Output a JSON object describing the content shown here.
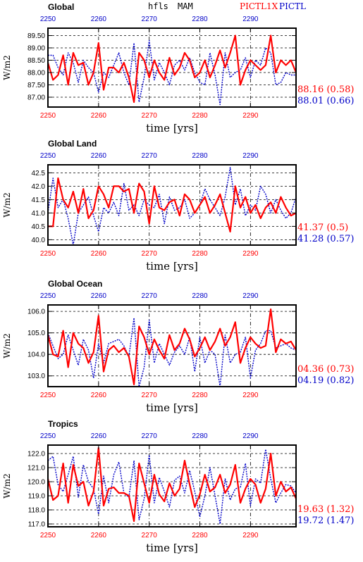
{
  "header": {
    "variable": "hfls",
    "season": "MAM",
    "series_a_label": "PICTL1X",
    "series_b_label": "PICTL"
  },
  "colors": {
    "series_a": "#ff0000",
    "series_b": "#0000c8",
    "axis": "#000000",
    "grid": "#000000"
  },
  "chart_data": [
    {
      "type": "line",
      "title": "Global",
      "xlabel": "time [yrs]",
      "ylabel": "W/m2",
      "xlim": [
        2250,
        2299
      ],
      "ylim": [
        86.6,
        89.8
      ],
      "xticks": [
        2250,
        2260,
        2270,
        2280,
        2290
      ],
      "yticks": [
        87.0,
        87.5,
        88.0,
        88.5,
        89.0,
        89.5
      ],
      "ytick_labels": [
        "87.00",
        "87.50",
        "88.00",
        "88.50",
        "89.00",
        "89.50"
      ],
      "grid": true,
      "series": [
        {
          "name": "PICTL1X",
          "stat": "88.16 (0.58)",
          "x_start": 2250,
          "values": [
            88.4,
            87.7,
            87.9,
            88.7,
            87.5,
            88.8,
            88.3,
            88.4,
            87.5,
            88.0,
            89.2,
            87.3,
            88.2,
            88.2,
            88.0,
            88.4,
            87.8,
            86.8,
            88.8,
            88.5,
            87.8,
            88.5,
            88.0,
            87.7,
            88.6,
            87.9,
            88.2,
            88.8,
            88.5,
            87.8,
            88.0,
            88.5,
            87.8,
            88.3,
            88.9,
            88.2,
            88.8,
            89.5,
            87.5,
            88.1,
            88.5,
            88.3,
            88.1,
            88.3,
            89.5,
            88.0,
            88.5,
            88.3,
            88.5,
            88.0
          ]
        },
        {
          "name": "PICTL",
          "stat": "88.01 (0.66)",
          "x_start": 2250,
          "values": [
            88.7,
            88.7,
            88.2,
            87.9,
            88.8,
            88.4,
            87.6,
            88.5,
            88.2,
            88.0,
            87.2,
            88.0,
            87.8,
            88.3,
            88.8,
            88.0,
            87.5,
            89.2,
            86.8,
            87.8,
            89.3,
            87.7,
            88.4,
            88.0,
            87.5,
            88.3,
            88.5,
            88.1,
            88.6,
            88.0,
            87.6,
            87.5,
            88.8,
            87.9,
            86.7,
            88.8,
            87.8,
            88.0,
            88.1,
            88.6,
            87.8,
            88.5,
            88.3,
            89.0,
            88.8,
            87.5,
            87.6,
            88.0,
            87.9,
            87.9
          ]
        }
      ]
    },
    {
      "type": "line",
      "title": "Global Land",
      "xlabel": "time [yrs]",
      "ylabel": "W/m2",
      "xlim": [
        2250,
        2299
      ],
      "ylim": [
        39.8,
        42.8
      ],
      "xticks": [
        2250,
        2260,
        2270,
        2280,
        2290
      ],
      "yticks": [
        40.0,
        40.5,
        41.0,
        41.5,
        42.0,
        42.5
      ],
      "ytick_labels": [
        "40.0",
        "40.5",
        "41.0",
        "41.5",
        "42.0",
        "42.5"
      ],
      "grid": true,
      "series": [
        {
          "name": "PICTL1X",
          "stat": "41.37 (0.5)",
          "x_start": 2250,
          "values": [
            40.5,
            40.5,
            42.3,
            41.5,
            41.2,
            41.8,
            41.0,
            41.9,
            40.8,
            41.1,
            42.0,
            41.7,
            41.2,
            42.0,
            42.0,
            41.8,
            41.9,
            41.0,
            42.1,
            41.8,
            40.6,
            42.0,
            41.2,
            41.1,
            41.4,
            41.5,
            40.9,
            41.7,
            41.5,
            41.0,
            41.3,
            41.6,
            41.0,
            41.3,
            41.7,
            41.0,
            40.3,
            42.0,
            41.2,
            41.6,
            41.0,
            41.3,
            40.8,
            41.2,
            41.4,
            41.0,
            41.6,
            41.2,
            40.9,
            41.0
          ]
        },
        {
          "name": "PICTL",
          "stat": "41.28 (0.57)",
          "x_start": 2250,
          "values": [
            41.0,
            42.3,
            41.2,
            41.5,
            40.8,
            39.8,
            41.0,
            41.3,
            41.6,
            40.9,
            40.3,
            41.2,
            41.0,
            41.4,
            40.9,
            42.1,
            41.1,
            41.3,
            40.9,
            41.5,
            41.3,
            41.2,
            41.7,
            40.6,
            41.6,
            41.1,
            41.2,
            41.5,
            40.8,
            41.0,
            41.3,
            41.9,
            41.5,
            41.2,
            40.9,
            41.6,
            42.7,
            41.3,
            41.9,
            40.9,
            41.3,
            41.1,
            42.0,
            41.7,
            41.0,
            41.5,
            41.1,
            40.8,
            41.0,
            41.6
          ]
        }
      ]
    },
    {
      "type": "line",
      "title": "Global Ocean",
      "xlabel": "time [yrs]",
      "ylabel": "W/m2",
      "xlim": [
        2250,
        2299
      ],
      "ylim": [
        102.5,
        106.3
      ],
      "xticks": [
        2250,
        2260,
        2270,
        2280,
        2290
      ],
      "yticks": [
        103.0,
        104.0,
        105.0,
        106.0
      ],
      "ytick_labels": [
        "103.0",
        "104.0",
        "105.0",
        "106.0"
      ],
      "grid": true,
      "series": [
        {
          "name": "PICTL1X",
          "stat": "04.36 (0.73)",
          "x_start": 2250,
          "values": [
            104.9,
            104.0,
            103.9,
            105.1,
            103.4,
            105.0,
            104.5,
            104.3,
            103.6,
            104.1,
            105.8,
            103.2,
            104.2,
            104.4,
            104.1,
            104.3,
            103.9,
            102.6,
            105.3,
            104.8,
            104.0,
            104.7,
            104.2,
            103.8,
            104.9,
            104.2,
            104.5,
            105.2,
            104.7,
            103.9,
            104.3,
            104.8,
            104.2,
            104.6,
            105.2,
            104.4,
            104.8,
            105.5,
            103.6,
            104.3,
            104.8,
            104.5,
            104.3,
            104.4,
            106.1,
            104.1,
            104.7,
            104.5,
            104.6,
            104.2
          ]
        },
        {
          "name": "PICTL",
          "stat": "04.19 (0.82)",
          "x_start": 2250,
          "values": [
            105.0,
            104.4,
            103.8,
            104.0,
            104.9,
            104.2,
            103.5,
            104.7,
            104.2,
            102.9,
            104.5,
            103.6,
            104.5,
            104.6,
            104.7,
            104.4,
            103.9,
            105.7,
            102.5,
            103.4,
            105.6,
            103.6,
            104.5,
            104.0,
            103.5,
            104.1,
            104.4,
            104.0,
            104.8,
            103.2,
            104.8,
            103.6,
            104.2,
            104.0,
            102.5,
            104.9,
            103.6,
            104.0,
            104.1,
            104.8,
            102.9,
            104.2,
            104.5,
            105.1,
            105.1,
            104.3,
            104.4,
            104.5,
            104.3,
            104.2
          ]
        }
      ]
    },
    {
      "type": "line",
      "title": "Tropics",
      "xlabel": "time [yrs]",
      "ylabel": "W/m2",
      "xlim": [
        2250,
        2299
      ],
      "ylim": [
        116.8,
        122.6
      ],
      "xticks": [
        2250,
        2260,
        2270,
        2280,
        2290
      ],
      "yticks": [
        117.0,
        118.0,
        119.0,
        120.0,
        121.0,
        122.0
      ],
      "ytick_labels": [
        "117.0",
        "118.0",
        "119.0",
        "120.0",
        "121.0",
        "122.0"
      ],
      "grid": true,
      "series": [
        {
          "name": "PICTL1X",
          "stat": "19.63 (1.32)",
          "x_start": 2250,
          "values": [
            120.2,
            118.7,
            119.0,
            121.3,
            118.5,
            121.2,
            119.7,
            120.0,
            118.3,
            119.3,
            122.4,
            118.3,
            119.5,
            119.6,
            119.2,
            119.2,
            119.0,
            117.2,
            121.3,
            119.9,
            118.5,
            120.5,
            119.1,
            118.6,
            119.9,
            119.0,
            119.5,
            121.5,
            119.8,
            118.2,
            119.1,
            120.5,
            119.3,
            119.6,
            120.5,
            119.2,
            119.8,
            121.2,
            118.5,
            119.5,
            120.2,
            119.8,
            118.5,
            119.5,
            122.0,
            119.0,
            120.0,
            119.3,
            119.6,
            118.8
          ]
        },
        {
          "name": "PICTL",
          "stat": "19.72 (1.47)",
          "x_start": 2250,
          "values": [
            121.5,
            121.8,
            119.8,
            119.3,
            120.5,
            121.8,
            118.9,
            121.2,
            120.0,
            119.5,
            117.7,
            120.4,
            118.5,
            120.5,
            121.4,
            119.2,
            118.9,
            121.5,
            117.3,
            118.8,
            121.9,
            118.5,
            120.3,
            119.3,
            118.2,
            120.1,
            120.4,
            119.2,
            120.8,
            119.3,
            117.5,
            119.0,
            121.0,
            119.0,
            117.0,
            120.2,
            118.7,
            119.5,
            119.6,
            121.3,
            118.3,
            120.2,
            119.9,
            122.3,
            120.2,
            118.5,
            119.2,
            119.8,
            119.7,
            119.2
          ]
        }
      ]
    }
  ]
}
